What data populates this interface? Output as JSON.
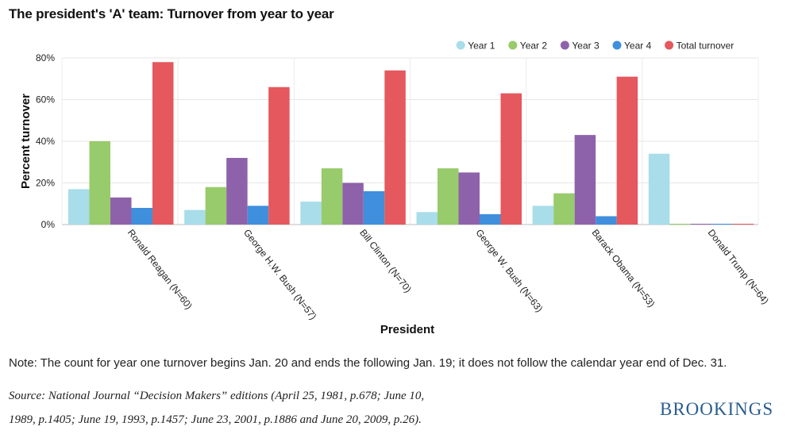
{
  "title": "The president's 'A' team: Turnover from year to year",
  "note": "Note: The count for year one turnover begins Jan. 20 and ends the following Jan. 19; it does not follow the calendar year end of Dec. 31.",
  "source_line1": "Source: National Journal “Decision Makers” editions (April 25, 1981, p.678; June 10,",
  "source_line2": "1989, p.1405; June 19, 1993, p.1457; June 23, 2001, p.1886 and June 20, 2009, p.26).",
  "logo": "BROOKINGS",
  "chart_data": {
    "type": "bar",
    "xlabel": "President",
    "ylabel": "Percent turnover",
    "ylim": [
      0,
      80
    ],
    "yticks": [
      "0%",
      "20%",
      "40%",
      "60%",
      "80%"
    ],
    "grid": true,
    "legend_position": "top-right",
    "categories": [
      "Ronald Reagan (N=60)",
      "George H.W. Bush (N=57)",
      "Bill Clinton (N=70)",
      "George W. Bush (N=63)",
      "Barack Obama (N=53)",
      "Donald Trump (N=64)"
    ],
    "series": [
      {
        "name": "Year 1",
        "color": "#a8dde9",
        "values": [
          17,
          7,
          11,
          6,
          9,
          34
        ]
      },
      {
        "name": "Year 2",
        "color": "#98cb6b",
        "values": [
          40,
          18,
          27,
          27,
          15,
          0
        ]
      },
      {
        "name": "Year 3",
        "color": "#8e62aa",
        "values": [
          13,
          32,
          20,
          25,
          43,
          0
        ]
      },
      {
        "name": "Year 4",
        "color": "#3f8fdd",
        "values": [
          8,
          9,
          16,
          5,
          4,
          0
        ]
      },
      {
        "name": "Total turnover",
        "color": "#e4585e",
        "values": [
          78,
          66,
          74,
          63,
          71,
          0
        ]
      }
    ]
  }
}
